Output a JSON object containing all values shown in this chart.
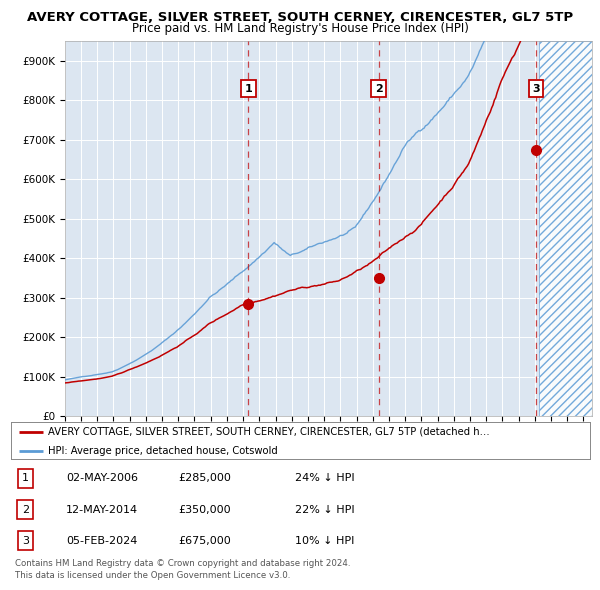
{
  "title1": "AVERY COTTAGE, SILVER STREET, SOUTH CERNEY, CIRENCESTER, GL7 5TP",
  "title2": "Price paid vs. HM Land Registry's House Price Index (HPI)",
  "ylim": [
    0,
    950000
  ],
  "yticks": [
    0,
    100000,
    200000,
    300000,
    400000,
    500000,
    600000,
    700000,
    800000,
    900000
  ],
  "ytick_labels": [
    "£0",
    "£100K",
    "£200K",
    "£300K",
    "£400K",
    "£500K",
    "£600K",
    "£700K",
    "£800K",
    "£900K"
  ],
  "xlim_start": 1995.0,
  "xlim_end": 2027.5,
  "hpi_color": "#5b9bd5",
  "price_color": "#c00000",
  "bg_color": "#dce6f1",
  "hatch_start": 2024.25,
  "purchases": [
    {
      "date_year": 2006.33,
      "price": 285000,
      "label": "1"
    },
    {
      "date_year": 2014.36,
      "price": 350000,
      "label": "2"
    },
    {
      "date_year": 2024.09,
      "price": 675000,
      "label": "3"
    }
  ],
  "legend_property": "AVERY COTTAGE, SILVER STREET, SOUTH CERNEY, CIRENCESTER, GL7 5TP (detached h…",
  "legend_hpi": "HPI: Average price, detached house, Cotswold",
  "table_rows": [
    {
      "num": "1",
      "date": "02-MAY-2006",
      "price": "£285,000",
      "pct": "24% ↓ HPI"
    },
    {
      "num": "2",
      "date": "12-MAY-2014",
      "price": "£350,000",
      "pct": "22% ↓ HPI"
    },
    {
      "num": "3",
      "date": "05-FEB-2024",
      "price": "£675,000",
      "pct": "10% ↓ HPI"
    }
  ],
  "footnote": "Contains HM Land Registry data © Crown copyright and database right 2024.\nThis data is licensed under the Open Government Licence v3.0."
}
